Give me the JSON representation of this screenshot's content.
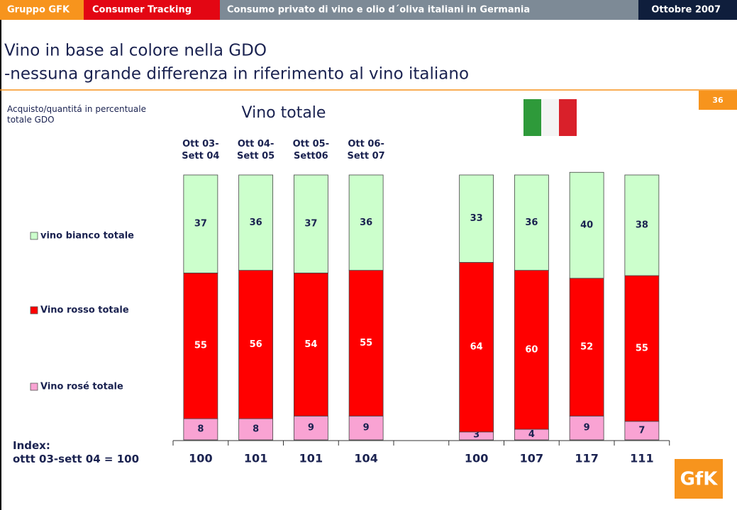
{
  "header": {
    "company": "Gruppo GFK",
    "section": "Consumer Tracking",
    "topic": "Consumo privato di vino e olio d´oliva italiani in Germania",
    "date": "Ottobre 2007"
  },
  "title_lines": [
    "Vino in base al colore nella GDO",
    "-nessuna grande differenza in riferimento al vino italiano"
  ],
  "page_number": "36",
  "logo": "GfK",
  "chart_data": {
    "type": "stacked_bar",
    "title": "Vino totale",
    "subtitle": "Acquisto/quantitá in percentuale\ntotale GDO",
    "categories": [
      "Ott 03-\nSett 04",
      "Ott 04-\nSett 05",
      "Ott 05-\nSett06",
      "Ott 06-\nSett 07",
      null,
      null,
      null,
      null
    ],
    "series": [
      {
        "name": "Vino rosé totale",
        "color": "#f9a3d3",
        "values": [
          8,
          8,
          9,
          9,
          3,
          4,
          9,
          7
        ]
      },
      {
        "name": "Vino rosso totale",
        "color": "#ff0000",
        "values": [
          55,
          56,
          54,
          55,
          64,
          60,
          52,
          55
        ]
      },
      {
        "name": "vino bianco totale",
        "color": "#ccffcc",
        "values": [
          37,
          36,
          37,
          36,
          33,
          36,
          40,
          38
        ]
      }
    ],
    "ylim": [
      0,
      100
    ],
    "index": {
      "label": "Index:\nottt 03-sett 04 = 100",
      "values": [
        100,
        101,
        101,
        104,
        100,
        107,
        117,
        111
      ]
    }
  }
}
